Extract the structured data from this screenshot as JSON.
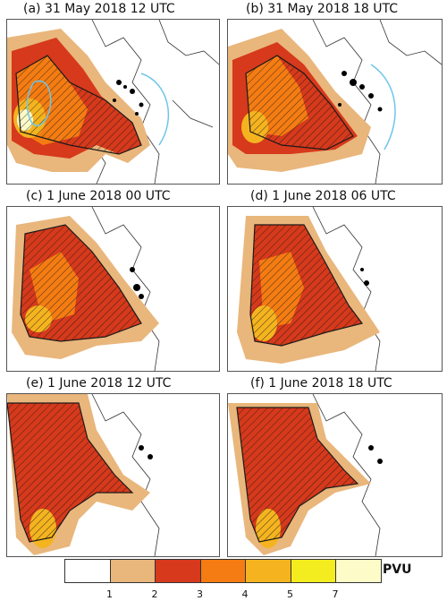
{
  "panels": [
    {
      "title": "(a) 31 May 2018 12 UTC"
    },
    {
      "title": "(b) 31 May 2018 18 UTC"
    },
    {
      "title": "(c) 1 June 2018 00 UTC"
    },
    {
      "title": "(d) 1 June 2018 06 UTC"
    },
    {
      "title": "(e) 1 June 2018 12 UTC"
    },
    {
      "title": "(f) 1 June 2018 18 UTC"
    }
  ],
  "colorbar": {
    "unit": "PVU",
    "ticks": [
      "1",
      "2",
      "3",
      "4",
      "5",
      "7"
    ],
    "colors": [
      "#ffffff",
      "#e9b67c",
      "#d6391b",
      "#f47c12",
      "#f5b41f",
      "#f3ec1e",
      "#fdfbc8"
    ]
  },
  "legend_colors": {
    "coastline": "#333333",
    "contour": "#6ec6e8",
    "precipitation": "#000000",
    "hatch_outline": "#1a1a1a"
  }
}
